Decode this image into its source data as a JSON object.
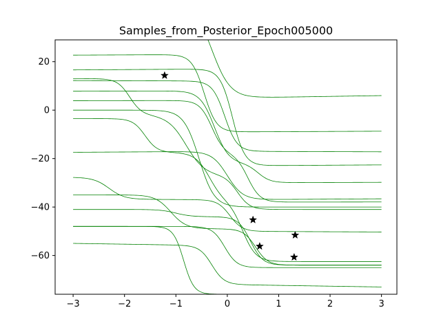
{
  "chart_data": {
    "type": "line",
    "title": "Samples_from_Posterior_Epoch005000",
    "xlabel": "",
    "ylabel": "",
    "xlim": [
      -3.35,
      3.3
    ],
    "ylim": [
      -76,
      29
    ],
    "xticks": [
      -3,
      -2,
      -1,
      0,
      1,
      2,
      3
    ],
    "yticks": [
      -60,
      -40,
      -20,
      0,
      20
    ],
    "xtick_labels": [
      "−3",
      "−2",
      "−1",
      "0",
      "1",
      "2",
      "3"
    ],
    "ytick_labels": [
      "−60",
      "−40",
      "−20",
      "0",
      "20"
    ],
    "grid": false,
    "line_color": "#008000",
    "marker_color": "#000000",
    "observations": [
      {
        "x": -1.22,
        "y": 14.3
      },
      {
        "x": 0.5,
        "y": -45.3
      },
      {
        "x": 0.63,
        "y": -56.2
      },
      {
        "x": 1.32,
        "y": -51.6
      },
      {
        "x": 1.3,
        "y": -60.7
      }
    ],
    "series": [
      {
        "steps": [
          {
            "a": 45,
            "b": -40,
            "c": -0.3,
            "w": 0.18
          }
        ],
        "d": 1.0
      },
      {
        "steps": [
          {
            "a": 23,
            "b": -32,
            "c": -0.45,
            "w": 0.12
          }
        ],
        "d": 0.3
      },
      {
        "steps": [
          {
            "a": 17,
            "b": -40,
            "c": 0.1,
            "w": 0.12
          }
        ],
        "d": 0.4
      },
      {
        "steps": [
          {
            "a": 12,
            "b": -29,
            "c": -0.05,
            "w": 0.12
          }
        ],
        "d": -0.2
      },
      {
        "steps": [
          {
            "a": 8,
            "b": -30,
            "c": -0.25,
            "w": 0.14
          },
          {
            "a": 0,
            "b": -8,
            "c": 0.6,
            "w": 0.12
          }
        ],
        "d": 0.2
      },
      {
        "steps": [
          {
            "a": 4,
            "b": -22,
            "c": -0.3,
            "w": 0.12
          },
          {
            "a": 0,
            "b": -20,
            "c": 0.4,
            "w": 0.12
          }
        ],
        "d": 0.1
      },
      {
        "steps": [
          {
            "a": 0,
            "b": -40,
            "c": -0.55,
            "w": 0.15
          }
        ],
        "d": 0.0
      },
      {
        "steps": [
          {
            "a": -3.5,
            "b": -14,
            "c": -1.6,
            "w": 0.12
          },
          {
            "a": 0,
            "b": -20,
            "c": -0.35,
            "w": 0.14
          },
          {
            "a": 0,
            "b": -25,
            "c": 0.3,
            "w": 0.13
          }
        ],
        "d": 0.0
      },
      {
        "steps": [
          {
            "a": 13,
            "b": -15,
            "c": -1.9,
            "w": 0.12
          },
          {
            "a": 0,
            "b": -25,
            "c": -0.8,
            "w": 0.18
          },
          {
            "a": 0,
            "b": -14,
            "c": 0.2,
            "w": 0.12
          }
        ],
        "d": 0.0
      },
      {
        "steps": [
          {
            "a": -17,
            "b": -20,
            "c": 0.0,
            "w": 0.15
          }
        ],
        "d": 0.4
      },
      {
        "steps": [
          {
            "a": -28,
            "b": -9,
            "c": -2.3,
            "w": 0.15
          },
          {
            "a": 0,
            "b": -13,
            "c": 0.05,
            "w": 0.12
          }
        ],
        "d": -0.3
      },
      {
        "steps": [
          {
            "a": -35,
            "b": -14,
            "c": -1.1,
            "w": 0.15
          },
          {
            "a": 0,
            "b": -15,
            "c": 0.55,
            "w": 0.12
          }
        ],
        "d": 0.0
      },
      {
        "steps": [
          {
            "a": -41,
            "b": -3,
            "c": -1.0,
            "w": 0.15
          },
          {
            "a": 0,
            "b": -20,
            "c": 0.45,
            "w": 0.12
          }
        ],
        "d": 0.0
      },
      {
        "steps": [
          {
            "a": -48,
            "b": -17,
            "c": -0.05,
            "w": 0.12
          }
        ],
        "d": 0.0
      },
      {
        "steps": [
          {
            "a": -56,
            "b": -16,
            "c": -0.3,
            "w": 0.12
          }
        ],
        "d": -1.0
      },
      {
        "steps": [
          {
            "a": -48,
            "b": -28,
            "c": -0.85,
            "w": 0.1
          }
        ],
        "d": 0.0
      }
    ]
  }
}
